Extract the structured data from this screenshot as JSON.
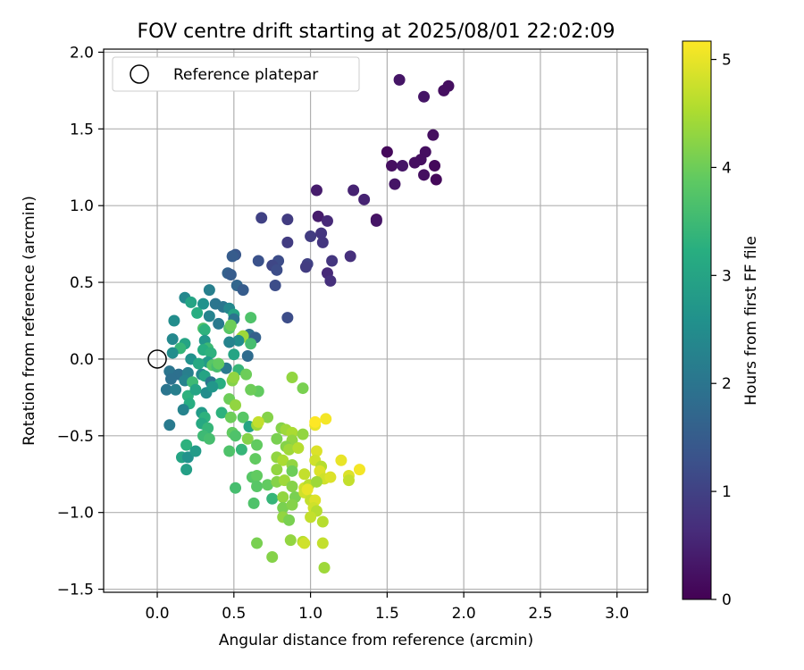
{
  "chart_data": {
    "type": "scatter",
    "title": "FOV centre drift starting at 2025/08/01 22:02:09",
    "xlabel": "Angular distance from reference (arcmin)",
    "ylabel": "Rotation from reference (arcmin)",
    "xlim": [
      -0.35,
      3.2
    ],
    "ylim": [
      -1.52,
      2.02
    ],
    "xticks": [
      0.0,
      0.5,
      1.0,
      1.5,
      2.0,
      2.5,
      3.0
    ],
    "xtick_labels": [
      "0.0",
      "0.5",
      "1.0",
      "1.5",
      "2.0",
      "2.5",
      "3.0"
    ],
    "yticks": [
      -1.5,
      -1.0,
      -0.5,
      0.0,
      0.5,
      1.0,
      1.5,
      2.0
    ],
    "ytick_labels": [
      "−1.5",
      "−1.0",
      "−0.5",
      "0.0",
      "0.5",
      "1.0",
      "1.5",
      "2.0"
    ],
    "grid": true,
    "legend": {
      "placement": "top-left",
      "entries": [
        "Reference platepar"
      ]
    },
    "reference_point": {
      "x": 0.0,
      "y": 0.0
    },
    "colorbar": {
      "label": "Hours from first FF file",
      "colormap": "viridis",
      "range": [
        0,
        5.17
      ],
      "ticks": [
        0,
        1,
        2,
        3,
        4,
        5
      ],
      "tick_labels": [
        "0",
        "1",
        "2",
        "3",
        "4",
        "5"
      ]
    },
    "points": [
      {
        "x": 1.58,
        "y": 1.82,
        "h": 0.3
      },
      {
        "x": 1.9,
        "y": 1.78,
        "h": 0.2
      },
      {
        "x": 1.87,
        "y": 1.75,
        "h": 0.2
      },
      {
        "x": 1.74,
        "y": 1.71,
        "h": 0.3
      },
      {
        "x": 1.8,
        "y": 1.46,
        "h": 0.2
      },
      {
        "x": 1.5,
        "y": 1.35,
        "h": 0.1
      },
      {
        "x": 1.75,
        "y": 1.35,
        "h": 0.2
      },
      {
        "x": 1.72,
        "y": 1.3,
        "h": 0.2
      },
      {
        "x": 1.68,
        "y": 1.28,
        "h": 0.2
      },
      {
        "x": 1.81,
        "y": 1.26,
        "h": 0.1
      },
      {
        "x": 1.53,
        "y": 1.26,
        "h": 0.2
      },
      {
        "x": 1.6,
        "y": 1.26,
        "h": 0.3
      },
      {
        "x": 1.74,
        "y": 1.2,
        "h": 0.2
      },
      {
        "x": 1.82,
        "y": 1.17,
        "h": 0.1
      },
      {
        "x": 1.55,
        "y": 1.14,
        "h": 0.3
      },
      {
        "x": 1.04,
        "y": 1.1,
        "h": 0.4
      },
      {
        "x": 1.28,
        "y": 1.1,
        "h": 0.5
      },
      {
        "x": 1.35,
        "y": 1.04,
        "h": 0.5
      },
      {
        "x": 1.43,
        "y": 0.91,
        "h": 0.2
      },
      {
        "x": 1.43,
        "y": 0.9,
        "h": 0.3
      },
      {
        "x": 1.05,
        "y": 0.93,
        "h": 0.4
      },
      {
        "x": 1.11,
        "y": 0.9,
        "h": 0.6
      },
      {
        "x": 0.68,
        "y": 0.92,
        "h": 1.0
      },
      {
        "x": 0.85,
        "y": 0.91,
        "h": 0.9
      },
      {
        "x": 1.0,
        "y": 0.8,
        "h": 0.9
      },
      {
        "x": 1.07,
        "y": 0.82,
        "h": 0.8
      },
      {
        "x": 1.08,
        "y": 0.76,
        "h": 0.8
      },
      {
        "x": 0.85,
        "y": 0.76,
        "h": 0.9
      },
      {
        "x": 0.51,
        "y": 0.68,
        "h": 1.4
      },
      {
        "x": 0.49,
        "y": 0.67,
        "h": 1.5
      },
      {
        "x": 0.66,
        "y": 0.64,
        "h": 1.3
      },
      {
        "x": 0.79,
        "y": 0.64,
        "h": 1.2
      },
      {
        "x": 1.14,
        "y": 0.64,
        "h": 0.8
      },
      {
        "x": 1.26,
        "y": 0.67,
        "h": 0.7
      },
      {
        "x": 0.75,
        "y": 0.61,
        "h": 1.1
      },
      {
        "x": 0.98,
        "y": 0.62,
        "h": 1.0
      },
      {
        "x": 0.78,
        "y": 0.58,
        "h": 1.2
      },
      {
        "x": 0.97,
        "y": 0.6,
        "h": 0.9
      },
      {
        "x": 1.11,
        "y": 0.56,
        "h": 0.6
      },
      {
        "x": 0.46,
        "y": 0.56,
        "h": 1.6
      },
      {
        "x": 0.48,
        "y": 0.55,
        "h": 1.5
      },
      {
        "x": 1.13,
        "y": 0.51,
        "h": 0.7
      },
      {
        "x": 0.52,
        "y": 0.48,
        "h": 1.7
      },
      {
        "x": 0.77,
        "y": 0.48,
        "h": 1.2
      },
      {
        "x": 0.56,
        "y": 0.45,
        "h": 1.5
      },
      {
        "x": 0.34,
        "y": 0.45,
        "h": 2.2
      },
      {
        "x": 0.18,
        "y": 0.4,
        "h": 2.4
      },
      {
        "x": 0.22,
        "y": 0.37,
        "h": 3.0
      },
      {
        "x": 0.3,
        "y": 0.36,
        "h": 2.6
      },
      {
        "x": 0.38,
        "y": 0.36,
        "h": 2.0
      },
      {
        "x": 0.43,
        "y": 0.34,
        "h": 2.0
      },
      {
        "x": 0.47,
        "y": 0.33,
        "h": 2.4
      },
      {
        "x": 0.26,
        "y": 0.3,
        "h": 3.2
      },
      {
        "x": 0.5,
        "y": 0.29,
        "h": 3.0
      },
      {
        "x": 0.34,
        "y": 0.28,
        "h": 2.3
      },
      {
        "x": 0.5,
        "y": 0.26,
        "h": 2.0
      },
      {
        "x": 0.61,
        "y": 0.27,
        "h": 3.7
      },
      {
        "x": 0.85,
        "y": 0.27,
        "h": 1.2
      },
      {
        "x": 0.11,
        "y": 0.25,
        "h": 2.5
      },
      {
        "x": 0.4,
        "y": 0.23,
        "h": 2.1
      },
      {
        "x": 0.3,
        "y": 0.2,
        "h": 3.7
      },
      {
        "x": 0.47,
        "y": 0.2,
        "h": 3.8
      },
      {
        "x": 0.31,
        "y": 0.19,
        "h": 3.3
      },
      {
        "x": 0.6,
        "y": 0.16,
        "h": 1.9
      },
      {
        "x": 0.64,
        "y": 0.14,
        "h": 1.6
      },
      {
        "x": 0.55,
        "y": 0.14,
        "h": 4.6
      },
      {
        "x": 0.56,
        "y": 0.15,
        "h": 4.4
      },
      {
        "x": 0.1,
        "y": 0.13,
        "h": 2.4
      },
      {
        "x": 0.31,
        "y": 0.12,
        "h": 2.7
      },
      {
        "x": 0.53,
        "y": 0.12,
        "h": 2.5
      },
      {
        "x": 0.47,
        "y": 0.11,
        "h": 2.3
      },
      {
        "x": 0.18,
        "y": 0.1,
        "h": 3.0
      },
      {
        "x": 0.15,
        "y": 0.07,
        "h": 3.4
      },
      {
        "x": 0.33,
        "y": 0.07,
        "h": 3.5
      },
      {
        "x": 0.3,
        "y": 0.06,
        "h": 3.2
      },
      {
        "x": 0.35,
        "y": 0.04,
        "h": 3.3
      },
      {
        "x": 0.1,
        "y": 0.04,
        "h": 2.5
      },
      {
        "x": 0.5,
        "y": 0.03,
        "h": 3.0
      },
      {
        "x": 0.59,
        "y": 0.02,
        "h": 1.8
      },
      {
        "x": 0.22,
        "y": 0.0,
        "h": 2.6
      },
      {
        "x": 0.33,
        "y": -0.02,
        "h": 2.8
      },
      {
        "x": 0.27,
        "y": -0.03,
        "h": 3.1
      },
      {
        "x": 0.36,
        "y": -0.04,
        "h": 3.8
      },
      {
        "x": 0.39,
        "y": -0.05,
        "h": 3.6
      },
      {
        "x": 0.45,
        "y": -0.06,
        "h": 2.1
      },
      {
        "x": 0.53,
        "y": -0.07,
        "h": 3.4
      },
      {
        "x": 0.08,
        "y": -0.08,
        "h": 2.0
      },
      {
        "x": 0.14,
        "y": -0.1,
        "h": 1.9
      },
      {
        "x": 0.2,
        "y": -0.09,
        "h": 2.2
      },
      {
        "x": 0.29,
        "y": -0.1,
        "h": 2.4
      },
      {
        "x": 0.31,
        "y": -0.11,
        "h": 3.0
      },
      {
        "x": 0.58,
        "y": -0.1,
        "h": 4.0
      },
      {
        "x": 0.09,
        "y": -0.13,
        "h": 1.9
      },
      {
        "x": 0.18,
        "y": -0.14,
        "h": 2.3
      },
      {
        "x": 0.23,
        "y": -0.15,
        "h": 3.5
      },
      {
        "x": 0.35,
        "y": -0.15,
        "h": 2.0
      },
      {
        "x": 0.41,
        "y": -0.16,
        "h": 3.2
      },
      {
        "x": 0.49,
        "y": -0.14,
        "h": 4.2
      },
      {
        "x": 0.06,
        "y": -0.2,
        "h": 2.0
      },
      {
        "x": 0.12,
        "y": -0.2,
        "h": 2.2
      },
      {
        "x": 0.2,
        "y": -0.24,
        "h": 3.3
      },
      {
        "x": 0.25,
        "y": -0.2,
        "h": 3.0
      },
      {
        "x": 0.32,
        "y": -0.22,
        "h": 2.5
      },
      {
        "x": 0.36,
        "y": -0.18,
        "h": 2.7
      },
      {
        "x": 0.66,
        "y": -0.21,
        "h": 3.9
      },
      {
        "x": 0.47,
        "y": -0.26,
        "h": 4.0
      },
      {
        "x": 0.21,
        "y": -0.29,
        "h": 3.2
      },
      {
        "x": 0.17,
        "y": -0.33,
        "h": 2.3
      },
      {
        "x": 0.51,
        "y": -0.3,
        "h": 4.3
      },
      {
        "x": 0.29,
        "y": -0.35,
        "h": 2.8
      },
      {
        "x": 0.42,
        "y": -0.35,
        "h": 3.3
      },
      {
        "x": 0.31,
        "y": -0.38,
        "h": 3.3
      },
      {
        "x": 0.48,
        "y": -0.38,
        "h": 4.0
      },
      {
        "x": 0.56,
        "y": -0.38,
        "h": 3.8
      },
      {
        "x": 0.72,
        "y": -0.38,
        "h": 4.2
      },
      {
        "x": 0.08,
        "y": -0.43,
        "h": 2.1
      },
      {
        "x": 0.29,
        "y": -0.42,
        "h": 3.1
      },
      {
        "x": 0.33,
        "y": -0.45,
        "h": 3.4
      },
      {
        "x": 0.6,
        "y": -0.44,
        "h": 3.0
      },
      {
        "x": 0.65,
        "y": -0.43,
        "h": 4.4
      },
      {
        "x": 0.66,
        "y": -0.41,
        "h": 4.7
      },
      {
        "x": 0.81,
        "y": -0.45,
        "h": 4.2
      },
      {
        "x": 0.49,
        "y": -0.48,
        "h": 3.9
      },
      {
        "x": 0.84,
        "y": -0.46,
        "h": 4.4
      },
      {
        "x": 0.3,
        "y": -0.5,
        "h": 3.5
      },
      {
        "x": 0.34,
        "y": -0.52,
        "h": 3.6
      },
      {
        "x": 0.51,
        "y": -0.5,
        "h": 3.7
      },
      {
        "x": 0.59,
        "y": -0.52,
        "h": 4.2
      },
      {
        "x": 0.78,
        "y": -0.52,
        "h": 4.1
      },
      {
        "x": 0.88,
        "y": -0.48,
        "h": 4.5
      },
      {
        "x": 0.88,
        "y": -0.53,
        "h": 4.3
      },
      {
        "x": 0.19,
        "y": -0.56,
        "h": 3.3
      },
      {
        "x": 0.65,
        "y": -0.56,
        "h": 3.9
      },
      {
        "x": 0.84,
        "y": -0.57,
        "h": 4.2
      },
      {
        "x": 0.86,
        "y": -0.59,
        "h": 4.4
      },
      {
        "x": 0.92,
        "y": -0.58,
        "h": 4.6
      },
      {
        "x": 1.04,
        "y": -0.6,
        "h": 4.9
      },
      {
        "x": 0.16,
        "y": -0.64,
        "h": 3.0
      },
      {
        "x": 0.2,
        "y": -0.64,
        "h": 2.6
      },
      {
        "x": 0.25,
        "y": -0.6,
        "h": 2.8
      },
      {
        "x": 0.47,
        "y": -0.6,
        "h": 3.7
      },
      {
        "x": 0.55,
        "y": -0.59,
        "h": 3.4
      },
      {
        "x": 0.64,
        "y": -0.65,
        "h": 3.9
      },
      {
        "x": 0.78,
        "y": -0.64,
        "h": 4.3
      },
      {
        "x": 0.82,
        "y": -0.66,
        "h": 4.5
      },
      {
        "x": 0.88,
        "y": -0.69,
        "h": 4.3
      },
      {
        "x": 1.03,
        "y": -0.66,
        "h": 4.8
      },
      {
        "x": 1.07,
        "y": -0.7,
        "h": 4.6
      },
      {
        "x": 1.2,
        "y": -0.66,
        "h": 5.0
      },
      {
        "x": 0.19,
        "y": -0.72,
        "h": 2.9
      },
      {
        "x": 0.78,
        "y": -0.72,
        "h": 4.3
      },
      {
        "x": 0.88,
        "y": -0.73,
        "h": 4.0
      },
      {
        "x": 0.96,
        "y": -0.75,
        "h": 4.7
      },
      {
        "x": 1.06,
        "y": -0.73,
        "h": 4.9
      },
      {
        "x": 1.09,
        "y": -0.78,
        "h": 4.8
      },
      {
        "x": 1.13,
        "y": -0.77,
        "h": 4.9
      },
      {
        "x": 1.25,
        "y": -0.76,
        "h": 4.9
      },
      {
        "x": 1.25,
        "y": -0.79,
        "h": 4.7
      },
      {
        "x": 1.32,
        "y": -0.72,
        "h": 5.1
      },
      {
        "x": 0.62,
        "y": -0.77,
        "h": 3.8
      },
      {
        "x": 0.65,
        "y": -0.76,
        "h": 3.9
      },
      {
        "x": 0.65,
        "y": -0.83,
        "h": 3.8
      },
      {
        "x": 0.72,
        "y": -0.82,
        "h": 3.9
      },
      {
        "x": 0.78,
        "y": -0.8,
        "h": 4.2
      },
      {
        "x": 0.83,
        "y": -0.79,
        "h": 4.4
      },
      {
        "x": 0.88,
        "y": -0.83,
        "h": 4.2
      },
      {
        "x": 0.96,
        "y": -0.84,
        "h": 4.8
      },
      {
        "x": 0.99,
        "y": -0.82,
        "h": 4.6
      },
      {
        "x": 1.04,
        "y": -0.8,
        "h": 4.4
      },
      {
        "x": 0.51,
        "y": -0.84,
        "h": 3.6
      },
      {
        "x": 0.75,
        "y": -0.91,
        "h": 3.4
      },
      {
        "x": 0.82,
        "y": -0.9,
        "h": 4.3
      },
      {
        "x": 0.9,
        "y": -0.9,
        "h": 4.1
      },
      {
        "x": 0.96,
        "y": -0.87,
        "h": 4.8
      },
      {
        "x": 0.98,
        "y": -0.85,
        "h": 5.0
      },
      {
        "x": 1.0,
        "y": -0.92,
        "h": 4.7
      },
      {
        "x": 1.03,
        "y": -0.92,
        "h": 4.9
      },
      {
        "x": 0.63,
        "y": -0.94,
        "h": 3.7
      },
      {
        "x": 0.82,
        "y": -0.97,
        "h": 4.1
      },
      {
        "x": 0.88,
        "y": -0.95,
        "h": 4.2
      },
      {
        "x": 1.02,
        "y": -0.97,
        "h": 4.8
      },
      {
        "x": 1.04,
        "y": -0.99,
        "h": 4.6
      },
      {
        "x": 0.82,
        "y": -1.03,
        "h": 4.3
      },
      {
        "x": 0.86,
        "y": -1.05,
        "h": 4.1
      },
      {
        "x": 1.0,
        "y": -1.03,
        "h": 4.7
      },
      {
        "x": 1.08,
        "y": -1.06,
        "h": 4.6
      },
      {
        "x": 0.87,
        "y": -1.18,
        "h": 4.3
      },
      {
        "x": 0.95,
        "y": -1.19,
        "h": 4.6
      },
      {
        "x": 0.96,
        "y": -1.2,
        "h": 4.8
      },
      {
        "x": 1.08,
        "y": -1.2,
        "h": 4.7
      },
      {
        "x": 0.65,
        "y": -1.2,
        "h": 4.1
      },
      {
        "x": 0.75,
        "y": -1.29,
        "h": 4.2
      },
      {
        "x": 1.09,
        "y": -1.36,
        "h": 4.4
      },
      {
        "x": 0.88,
        "y": -0.12,
        "h": 4.3
      },
      {
        "x": 0.95,
        "y": -0.19,
        "h": 4.1
      },
      {
        "x": 0.61,
        "y": -0.2,
        "h": 4.0
      },
      {
        "x": 0.48,
        "y": 0.22,
        "h": 4.0
      },
      {
        "x": 0.61,
        "y": 0.1,
        "h": 3.6
      },
      {
        "x": 0.4,
        "y": -0.03,
        "h": 3.9
      },
      {
        "x": 0.5,
        "y": -0.12,
        "h": 4.3
      },
      {
        "x": 1.03,
        "y": -0.43,
        "h": 5.0
      },
      {
        "x": 1.1,
        "y": -0.39,
        "h": 5.1
      },
      {
        "x": 1.03,
        "y": -0.41,
        "h": 5.2
      },
      {
        "x": 0.95,
        "y": -0.49,
        "h": 4.3
      }
    ]
  }
}
